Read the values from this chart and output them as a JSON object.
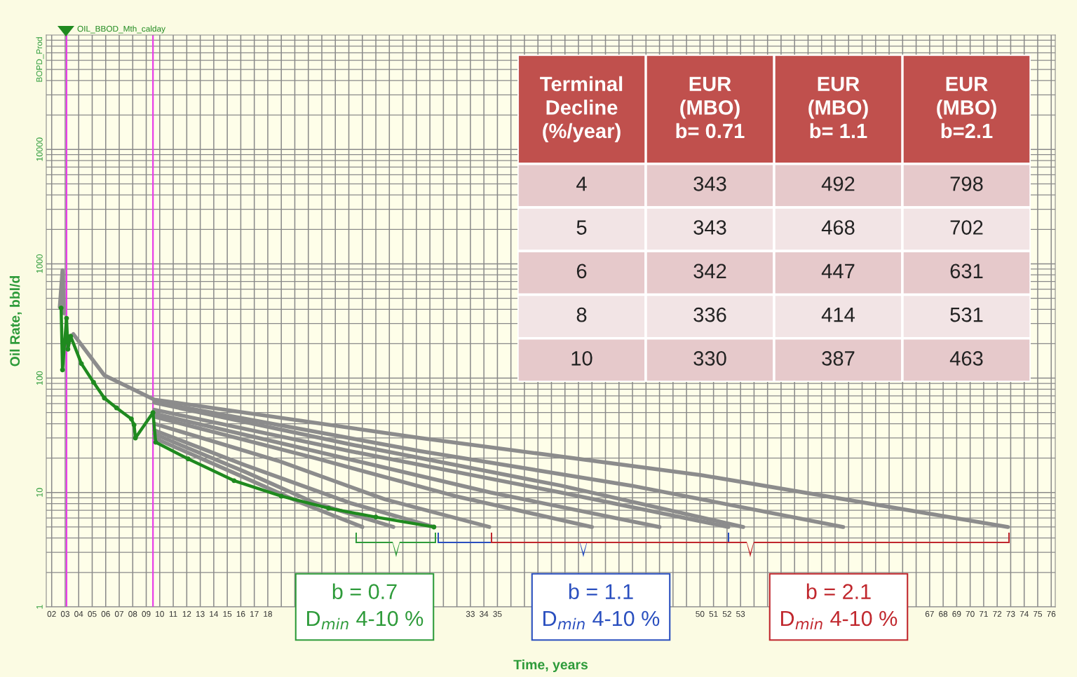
{
  "chart_data": [
    {
      "type": "line",
      "xlabel": "Time, years",
      "ylabel": "Oil Rate, bbl/d",
      "log": "y",
      "grid": true,
      "legend": "top left",
      "xlim": [
        2001.6,
        2076.3
      ],
      "ylim": [
        1,
        100000
      ],
      "yticks": [
        1,
        10,
        100,
        1000,
        10000
      ],
      "xticks": [
        {
          "value": 2002,
          "label": "02"
        },
        {
          "value": 2003,
          "label": "03"
        },
        {
          "value": 2004,
          "label": "04"
        },
        {
          "value": 2005,
          "label": "05"
        },
        {
          "value": 2006,
          "label": "06"
        },
        {
          "value": 2007,
          "label": "07"
        },
        {
          "value": 2008,
          "label": "08"
        },
        {
          "value": 2009,
          "label": "09"
        },
        {
          "value": 2010,
          "label": "10"
        },
        {
          "value": 2011,
          "label": "11"
        },
        {
          "value": 2012,
          "label": "12"
        },
        {
          "value": 2013,
          "label": "13"
        },
        {
          "value": 2014,
          "label": "14"
        },
        {
          "value": 2015,
          "label": "15"
        },
        {
          "value": 2016,
          "label": "16"
        },
        {
          "value": 2017,
          "label": "17"
        },
        {
          "value": 2018,
          "label": "18"
        },
        {
          "value": 2019,
          "label": null
        },
        {
          "value": 2020,
          "label": null
        },
        {
          "value": 2021,
          "label": null
        },
        {
          "value": 2022,
          "label": null
        },
        {
          "value": 2023,
          "label": null
        },
        {
          "value": 2024,
          "label": null
        },
        {
          "value": 2025,
          "label": null
        },
        {
          "value": 2026,
          "label": null
        },
        {
          "value": 2027,
          "label": null
        },
        {
          "value": 2028,
          "label": null
        },
        {
          "value": 2029,
          "label": null
        },
        {
          "value": 2030,
          "label": null
        },
        {
          "value": 2031,
          "label": null
        },
        {
          "value": 2032,
          "label": null
        },
        {
          "value": 2033,
          "label": "33"
        },
        {
          "value": 2034,
          "label": "34"
        },
        {
          "value": 2035,
          "label": "35"
        },
        {
          "value": 2036,
          "label": null
        },
        {
          "value": 2037,
          "label": null
        },
        {
          "value": 2038,
          "label": null
        },
        {
          "value": 2039,
          "label": null
        },
        {
          "value": 2040,
          "label": null
        },
        {
          "value": 2041,
          "label": null
        },
        {
          "value": 2042,
          "label": null
        },
        {
          "value": 2043,
          "label": null
        },
        {
          "value": 2044,
          "label": null
        },
        {
          "value": 2045,
          "label": null
        },
        {
          "value": 2046,
          "label": null
        },
        {
          "value": 2047,
          "label": null
        },
        {
          "value": 2048,
          "label": null
        },
        {
          "value": 2049,
          "label": null
        },
        {
          "value": 2050,
          "label": "50"
        },
        {
          "value": 2051,
          "label": "51"
        },
        {
          "value": 2052,
          "label": "52"
        },
        {
          "value": 2053,
          "label": "53"
        },
        {
          "value": 2054,
          "label": null
        },
        {
          "value": 2055,
          "label": null
        },
        {
          "value": 2056,
          "label": null
        },
        {
          "value": 2057,
          "label": null
        },
        {
          "value": 2058,
          "label": null
        },
        {
          "value": 2059,
          "label": null
        },
        {
          "value": 2060,
          "label": null
        },
        {
          "value": 2061,
          "label": null
        },
        {
          "value": 2062,
          "label": null
        },
        {
          "value": 2063,
          "label": null
        },
        {
          "value": 2064,
          "label": null
        },
        {
          "value": 2065,
          "label": null
        },
        {
          "value": 2066,
          "label": null
        },
        {
          "value": 2067,
          "label": "67"
        },
        {
          "value": 2068,
          "label": "68"
        },
        {
          "value": 2069,
          "label": "69"
        },
        {
          "value": 2070,
          "label": "70"
        },
        {
          "value": 2071,
          "label": "71"
        },
        {
          "value": 2072,
          "label": "72"
        },
        {
          "value": 2073,
          "label": "73"
        },
        {
          "value": 2074,
          "label": "74"
        },
        {
          "value": 2075,
          "label": "75"
        },
        {
          "value": 2076,
          "label": "76"
        }
      ],
      "ref_lines": [
        {
          "axis": "x",
          "value": 2003.1,
          "color": "#e83ee8"
        },
        {
          "axis": "x",
          "value": 2009.5,
          "color": "#e83ee8"
        }
      ],
      "annotations": [
        "BOPD_Prod",
        "b = 0.7\nD$_{min}$ 4-10 %",
        "b = 1.1\nD$_{min}$ 4-10 %",
        "b = 2.1\nD$_{min}$ 4-10 %"
      ],
      "series": [
        {
          "color": "#8c8c8c",
          "x": [
            2002.6,
            2002.8,
            2002.9
          ],
          "values": [
            420,
            880,
            370
          ]
        },
        {
          "color": "#8c8c8c",
          "x": [
            2003.6,
            2005.9,
            2009.6,
            2029.3,
            2050.1,
            2072.8
          ],
          "values": [
            243,
            106,
            65,
            30,
            14.2,
            5
          ]
        },
        {
          "color": "#8c8c8c",
          "x": [
            2009.6,
            2029.3,
            2044.9,
            2060.6
          ],
          "values": [
            62,
            23,
            11.5,
            5
          ]
        },
        {
          "color": "#8c8c8c",
          "x": [
            2009.6,
            2024.1,
            2039.7,
            2053.2
          ],
          "values": [
            61,
            26.4,
            11.5,
            5
          ]
        },
        {
          "color": "#8c8c8c",
          "x": [
            2009.6,
            2024.1,
            2039.7,
            2052.1
          ],
          "values": [
            53,
            23,
            10,
            5
          ]
        },
        {
          "color": "#8c8c8c",
          "x": [
            2009.6,
            2021.5,
            2034.5,
            2047.0
          ],
          "values": [
            49,
            23,
            10,
            5
          ]
        },
        {
          "color": "#8c8c8c",
          "x": [
            2009.6,
            2021.5,
            2031.9,
            2042.0
          ],
          "values": [
            46,
            20,
            9.3,
            5
          ]
        },
        {
          "color": "#8c8c8c",
          "x": [
            2009.6,
            2018.9,
            2026.7,
            2034.4
          ],
          "values": [
            40,
            18.7,
            8.7,
            5
          ]
        },
        {
          "color": "#8c8c8c",
          "x": [
            2009.6,
            2016.3,
            2024.1,
            2030.3
          ],
          "values": [
            35,
            17.4,
            8.1,
            5
          ]
        },
        {
          "color": "#8c8c8c",
          "x": [
            2009.6,
            2016.3,
            2021.5,
            2027.3
          ],
          "values": [
            32.5,
            15.2,
            8.1,
            5
          ]
        },
        {
          "color": "#8c8c8c",
          "x": [
            2009.6,
            2015.3,
            2020.5,
            2025.0
          ],
          "values": [
            30,
            15.2,
            8.1,
            5
          ]
        },
        {
          "name": "OIL_BBOD_Mth_calday",
          "color": "#1f8a1f",
          "marker": "circle",
          "x": [
            2002.7,
            2002.8,
            2003.1,
            2003.2,
            2003.4,
            2004.2,
            2005.1,
            2005.9,
            2006.8,
            2007.9,
            2008.1,
            2008.2,
            2009.5,
            2009.7,
            2012.1,
            2015.5,
            2019.0,
            2022.5,
            2026.0,
            2030.3
          ],
          "values": [
            411,
            118,
            334,
            179,
            233,
            134,
            92,
            67,
            55,
            44,
            39,
            30,
            50,
            27.5,
            19.7,
            12.7,
            9.3,
            7.3,
            6.1,
            5
          ]
        }
      ]
    },
    {
      "type": "heatmap",
      "ylabel": "Terminal\nDecline\n(%/year)",
      "categories": [
        "EUR\n(MBO)\nb= 0.71",
        "EUR\n(MBO)\nb= 1.1",
        "EUR\n(MBO)\nb=2.1"
      ],
      "y_categories": [
        "4",
        "5",
        "6",
        "8",
        "10"
      ],
      "cells": [
        [
          343,
          492,
          798
        ],
        [
          343,
          468,
          702
        ],
        [
          342,
          447,
          631
        ],
        [
          336,
          414,
          531
        ],
        [
          330,
          387,
          463
        ]
      ],
      "data_labels": true
    }
  ]
}
